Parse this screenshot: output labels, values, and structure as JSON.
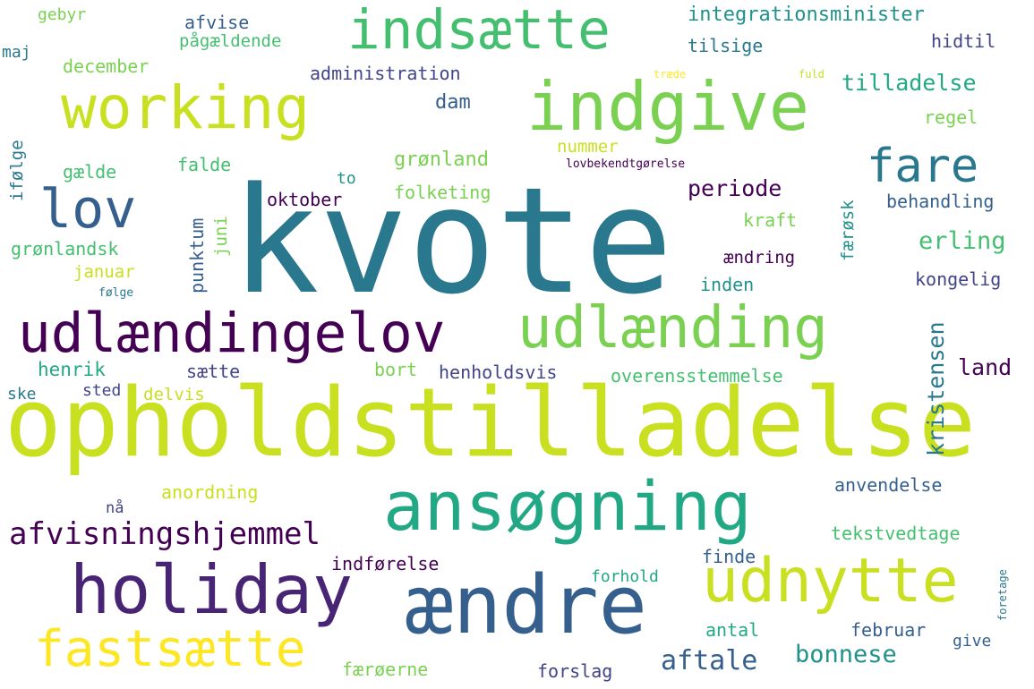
{
  "colors": {
    "background": "#ffffff",
    "yellow": "#fde725",
    "lime": "#c8e020",
    "green": "#7ad151",
    "teal_green": "#44bf70",
    "teal": "#22a884",
    "dark_teal": "#21918c",
    "steel_blue": "#2a788e",
    "blue": "#355f8d",
    "indigo": "#414487",
    "purple": "#482475",
    "dark_purple": "#440154"
  },
  "words": [
    {
      "id": "kvote",
      "text": "kvote",
      "color": "#2a788e"
    },
    {
      "id": "opholdstilladelse",
      "text": "opholdstilladelse",
      "color": "#c8e020"
    },
    {
      "id": "holiday",
      "text": "holiday",
      "color": "#482475"
    },
    {
      "id": "aendre",
      "text": "ændre",
      "color": "#355f8d"
    },
    {
      "id": "ansoegning",
      "text": "ansøgning",
      "color": "#22a884"
    },
    {
      "id": "working",
      "text": "working",
      "color": "#c8e020"
    },
    {
      "id": "indgive",
      "text": "indgive",
      "color": "#7ad151"
    },
    {
      "id": "udlaending",
      "text": "udlænding",
      "color": "#7ad151"
    },
    {
      "id": "udlaendingelov",
      "text": "udlændingelov",
      "color": "#440154"
    },
    {
      "id": "indsaette",
      "text": "indsætte",
      "color": "#44bf70"
    },
    {
      "id": "udnytte",
      "text": "udnytte",
      "color": "#c8e020"
    },
    {
      "id": "fastsaette",
      "text": "fastsætte",
      "color": "#fde725"
    },
    {
      "id": "lov",
      "text": "lov",
      "color": "#355f8d"
    },
    {
      "id": "fare",
      "text": "fare",
      "color": "#2a788e"
    },
    {
      "id": "afvisningshjemmel",
      "text": "afvisningshjemmel",
      "color": "#440154"
    },
    {
      "id": "aftale",
      "text": "aftale",
      "color": "#355f8d"
    },
    {
      "id": "integrationsminister",
      "text": "integrationsminister",
      "color": "#21918c"
    },
    {
      "id": "tilladelse",
      "text": "tilladelse",
      "color": "#22a884"
    },
    {
      "id": "periode",
      "text": "periode",
      "color": "#440154"
    },
    {
      "id": "erling",
      "text": "erling",
      "color": "#44bf70"
    },
    {
      "id": "land",
      "text": "land",
      "color": "#440154"
    },
    {
      "id": "bonnese",
      "text": "bonnese",
      "color": "#21918c"
    },
    {
      "id": "kristensen",
      "text": "kristensen",
      "color": "#2a788e"
    },
    {
      "id": "henholdsvis",
      "text": "henholdsvis",
      "color": "#414487"
    },
    {
      "id": "overensstemmelse",
      "text": "overensstemmelse",
      "color": "#44bf70"
    },
    {
      "id": "administration",
      "text": "administration",
      "color": "#414487"
    },
    {
      "id": "groenland",
      "text": "grønland",
      "color": "#7ad151"
    },
    {
      "id": "folketing",
      "text": "folketing",
      "color": "#7ad151"
    },
    {
      "id": "anvendelse",
      "text": "anvendelse",
      "color": "#355f8d"
    },
    {
      "id": "tekstvedtage",
      "text": "tekstvedtage",
      "color": "#44bf70"
    },
    {
      "id": "december",
      "text": "december",
      "color": "#7ad151"
    },
    {
      "id": "afvise",
      "text": "afvise",
      "color": "#355f8d"
    },
    {
      "id": "paagaeldende",
      "text": "pågældende",
      "color": "#44bf70"
    },
    {
      "id": "tilsige",
      "text": "tilsige",
      "color": "#2a788e"
    },
    {
      "id": "hidtil",
      "text": "hidtil",
      "color": "#414487"
    },
    {
      "id": "gebyr",
      "text": "gebyr",
      "color": "#7ad151"
    },
    {
      "id": "maj",
      "text": "maj",
      "color": "#2a788e"
    },
    {
      "id": "dam",
      "text": "dam",
      "color": "#355f8d"
    },
    {
      "id": "regel",
      "text": "regel",
      "color": "#7ad151"
    },
    {
      "id": "nummer",
      "text": "nummer",
      "color": "#c8e020"
    },
    {
      "id": "ifoelge",
      "text": "ifølge",
      "color": "#2a788e"
    },
    {
      "id": "gaelde",
      "text": "gælde",
      "color": "#44bf70"
    },
    {
      "id": "falde",
      "text": "falde",
      "color": "#44bf70"
    },
    {
      "id": "to",
      "text": "to",
      "color": "#21918c"
    },
    {
      "id": "oktober",
      "text": "oktober",
      "color": "#440154"
    },
    {
      "id": "punktum",
      "text": "punktum",
      "color": "#355f8d"
    },
    {
      "id": "juni",
      "text": "juni",
      "color": "#7ad151"
    },
    {
      "id": "kraft",
      "text": "kraft",
      "color": "#7ad151"
    },
    {
      "id": "faeroesk",
      "text": "færøsk",
      "color": "#21918c"
    },
    {
      "id": "behandling",
      "text": "behandling",
      "color": "#355f8d"
    },
    {
      "id": "aendring",
      "text": "ændring",
      "color": "#440154"
    },
    {
      "id": "inden",
      "text": "inden",
      "color": "#21918c"
    },
    {
      "id": "kongelig",
      "text": "kongelig",
      "color": "#414487"
    },
    {
      "id": "groenlandsk",
      "text": "grønlandsk",
      "color": "#44bf70"
    },
    {
      "id": "januar",
      "text": "januar",
      "color": "#c8e020"
    },
    {
      "id": "foelge",
      "text": "følge",
      "color": "#2a788e"
    },
    {
      "id": "henrik",
      "text": "henrik",
      "color": "#22a884"
    },
    {
      "id": "saette",
      "text": "sætte",
      "color": "#414487"
    },
    {
      "id": "bort",
      "text": "bort",
      "color": "#7ad151"
    },
    {
      "id": "ske",
      "text": "ske",
      "color": "#2a788e"
    },
    {
      "id": "sted",
      "text": "sted",
      "color": "#414487"
    },
    {
      "id": "delvis",
      "text": "delvis",
      "color": "#c8e020"
    },
    {
      "id": "anordning",
      "text": "anordning",
      "color": "#c8e020"
    },
    {
      "id": "naa",
      "text": "nå",
      "color": "#414487"
    },
    {
      "id": "indfoerelse",
      "text": "indførelse",
      "color": "#440154"
    },
    {
      "id": "finde",
      "text": "finde",
      "color": "#355f8d"
    },
    {
      "id": "forhold",
      "text": "forhold",
      "color": "#22a884"
    },
    {
      "id": "antal",
      "text": "antal",
      "color": "#22a884"
    },
    {
      "id": "februar",
      "text": "februar",
      "color": "#355f8d"
    },
    {
      "id": "give",
      "text": "give",
      "color": "#355f8d"
    },
    {
      "id": "faeroeerne",
      "text": "færøerne",
      "color": "#7ad151"
    },
    {
      "id": "forslag",
      "text": "forslag",
      "color": "#414487"
    },
    {
      "id": "traede",
      "text": "træde",
      "color": "#fde725"
    },
    {
      "id": "fuld",
      "text": "fuld",
      "color": "#c8e020"
    },
    {
      "id": "lovbekendtgoerelse",
      "text": "lovbekendtgørelse",
      "color": "#440154"
    },
    {
      "id": "foretage",
      "text": "foretage",
      "color": "#2a788e"
    }
  ]
}
